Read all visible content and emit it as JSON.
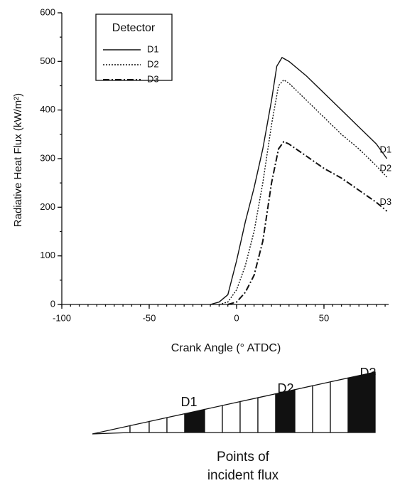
{
  "chart_data": {
    "type": "line",
    "xlabel": "Crank Angle (° ATDC)",
    "ylabel": "Radiative Heat Flux (kW/m²)",
    "legend_title": "Detector",
    "legend": "upper left",
    "xlim": [
      -100,
      87
    ],
    "xticks": [
      -100,
      -50,
      0,
      50
    ],
    "ylim": [
      0,
      600
    ],
    "yticks": [
      0,
      100,
      200,
      300,
      400,
      500,
      600
    ],
    "series": [
      {
        "name": "D1",
        "color": "#111111",
        "line_style": "solid",
        "x": [
          -15,
          -10,
          -5,
          0,
          5,
          10,
          15,
          20,
          23,
          26,
          30,
          40,
          50,
          60,
          70,
          80,
          86
        ],
        "values": [
          0,
          5,
          20,
          90,
          170,
          240,
          320,
          420,
          490,
          508,
          500,
          470,
          435,
          400,
          365,
          330,
          300
        ]
      },
      {
        "name": "D2",
        "color": "#111111",
        "line_style": "dotted",
        "x": [
          -10,
          -5,
          0,
          5,
          10,
          15,
          20,
          24,
          27,
          30,
          40,
          50,
          60,
          70,
          80,
          86
        ],
        "values": [
          0,
          5,
          30,
          80,
          150,
          250,
          370,
          450,
          462,
          455,
          420,
          385,
          350,
          320,
          285,
          262
        ]
      },
      {
        "name": "D3",
        "color": "#111111",
        "line_style": "dashdot",
        "x": [
          -5,
          0,
          5,
          10,
          15,
          20,
          24,
          27,
          30,
          40,
          50,
          60,
          70,
          80,
          86
        ],
        "values": [
          0,
          5,
          25,
          60,
          130,
          250,
          320,
          335,
          330,
          305,
          280,
          260,
          235,
          210,
          192
        ]
      }
    ]
  },
  "diagram": {
    "labels": [
      "D1",
      "D2",
      "D3"
    ],
    "caption": [
      "Points of",
      "incident flux"
    ]
  }
}
